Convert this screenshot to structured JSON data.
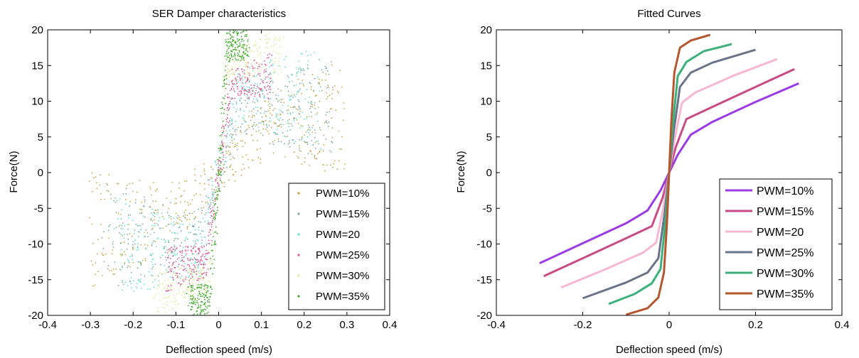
{
  "chart_data": [
    {
      "type": "scatter",
      "title": "SER Damper characteristics",
      "xlabel": "Deflection speed (m/s)",
      "ylabel": "Force(N)",
      "xlim": [
        -0.4,
        0.4
      ],
      "ylim": [
        -20,
        20
      ],
      "xticks": [
        "-0.4",
        "-0.3",
        "-0.2",
        "-0.1",
        "0",
        "0.1",
        "0.2",
        "0.3",
        "0.4"
      ],
      "yticks": [
        "20",
        "15",
        "10",
        "5",
        "0",
        "-5",
        "-10",
        "-15",
        "-20"
      ],
      "grid": false,
      "legend_position": "bottom-right",
      "series": [
        {
          "name": "PWM=10%",
          "color": "#c9a43a",
          "vmax": 0.3,
          "fmax": 8.3,
          "knee_v": 0.1,
          "knee_f": 6.0
        },
        {
          "name": "PWM=15%",
          "color": "#7aa8a0",
          "vmax": 0.27,
          "fmax": 9.0,
          "knee_v": 0.055,
          "knee_f": 9.0
        },
        {
          "name": "PWM=20",
          "color": "#5fe0cd",
          "vmax": 0.24,
          "fmax": 10.2,
          "knee_v": 0.04,
          "knee_f": 11.0
        },
        {
          "name": "PWM=25%",
          "color": "#d9559a",
          "vmax": 0.12,
          "fmax": 13.5,
          "knee_v": 0.03,
          "knee_f": 12.5
        },
        {
          "name": "PWM=30%",
          "color": "#e2eaa6",
          "vmax": 0.15,
          "fmax": 17.0,
          "knee_v": 0.025,
          "knee_f": 15.0
        },
        {
          "name": "PWM=35%",
          "color": "#3faa2a",
          "vmax": 0.07,
          "fmax": 18.5,
          "knee_v": 0.02,
          "knee_f": 17.5
        }
      ]
    },
    {
      "type": "line",
      "title": "Fitted Curves",
      "xlabel": "Deflection speed (m/s)",
      "ylabel": "Force(N)",
      "xlim": [
        -0.4,
        0.4
      ],
      "ylim": [
        -20,
        20
      ],
      "xticks": [
        "-0.4",
        "-0.2",
        "0",
        "0.2",
        "0.4"
      ],
      "yticks": [
        "20",
        "15",
        "10",
        "5",
        "0",
        "-5",
        "-10",
        "-15",
        "-20"
      ],
      "grid": false,
      "legend_position": "bottom-right",
      "series": [
        {
          "name": "PWM=10%",
          "color": "#9a3be6",
          "x": [
            -0.3,
            -0.2,
            -0.1,
            -0.05,
            -0.02,
            0,
            0.02,
            0.05,
            0.1,
            0.2,
            0.3
          ],
          "y": [
            -12.7,
            -9.9,
            -7.1,
            -5.3,
            -2.5,
            0,
            2.5,
            5.3,
            7.1,
            9.9,
            12.5
          ]
        },
        {
          "name": "PWM=15%",
          "color": "#c94b86",
          "x": [
            -0.29,
            -0.2,
            -0.1,
            -0.04,
            -0.015,
            0,
            0.015,
            0.04,
            0.1,
            0.2,
            0.29
          ],
          "y": [
            -14.5,
            -12.0,
            -9.2,
            -7.5,
            -3.5,
            0,
            3.5,
            7.5,
            9.2,
            12.0,
            14.5
          ]
        },
        {
          "name": "PWM=20",
          "color": "#f5b7d2",
          "x": [
            -0.25,
            -0.15,
            -0.06,
            -0.03,
            -0.012,
            0,
            0.012,
            0.03,
            0.06,
            0.15,
            0.25
          ],
          "y": [
            -16.1,
            -13.6,
            -11.2,
            -9.8,
            -4.5,
            0,
            4.5,
            9.8,
            11.2,
            13.6,
            15.9
          ]
        },
        {
          "name": "PWM=25%",
          "color": "#6b7388",
          "x": [
            -0.2,
            -0.1,
            -0.05,
            -0.025,
            -0.01,
            0,
            0.01,
            0.025,
            0.05,
            0.1,
            0.2
          ],
          "y": [
            -17.6,
            -15.4,
            -14.0,
            -12.0,
            -5.5,
            0,
            5.5,
            12.0,
            14.0,
            15.4,
            17.2
          ]
        },
        {
          "name": "PWM=30%",
          "color": "#3bb078",
          "x": [
            -0.14,
            -0.08,
            -0.04,
            -0.02,
            -0.008,
            0,
            0.008,
            0.02,
            0.04,
            0.08,
            0.145
          ],
          "y": [
            -18.4,
            -17.0,
            -15.5,
            -13.5,
            -6.5,
            0,
            6.5,
            13.5,
            15.5,
            17.0,
            18.0
          ]
        },
        {
          "name": "PWM=35%",
          "color": "#b5562e",
          "x": [
            -0.1,
            -0.05,
            -0.025,
            -0.012,
            -0.005,
            0,
            0.005,
            0.012,
            0.025,
            0.05,
            0.095
          ],
          "y": [
            -19.9,
            -19.0,
            -17.5,
            -14.0,
            -7.0,
            0,
            7.0,
            14.0,
            17.5,
            18.5,
            19.3
          ]
        }
      ]
    }
  ]
}
